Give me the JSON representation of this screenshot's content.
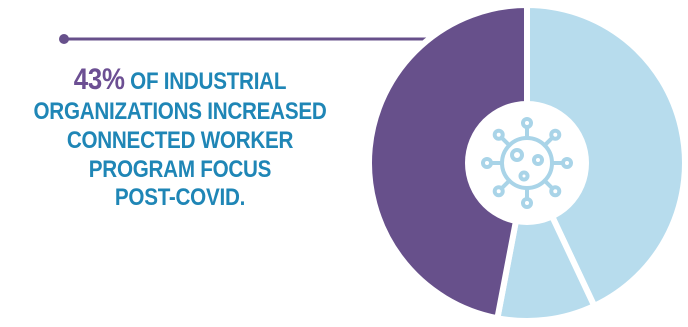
{
  "chart_data": {
    "type": "pie",
    "slices": [
      {
        "label": "",
        "value": 43,
        "color": "#b7dced"
      },
      {
        "label": "",
        "value": 10,
        "color": "#b7dced"
      },
      {
        "label": "",
        "value": 47,
        "color": "#67508b"
      }
    ],
    "center_icon": "virus-icon",
    "start_angle_deg": 0,
    "direction": "clockwise"
  },
  "headline": {
    "percent": "43%",
    "line1_rest": "OF INDUSTRIAL",
    "line2": "ORGANIZATIONS INCREASED",
    "line3": "CONNECTED WORKER",
    "line4": "PROGRAM FOCUS",
    "line5": "POST-COVID."
  },
  "colors": {
    "accent_purple": "#67508b",
    "accent_blue": "#1f86b6",
    "slice_light_blue": "#b7dced",
    "pointer_line": "#67508b"
  }
}
